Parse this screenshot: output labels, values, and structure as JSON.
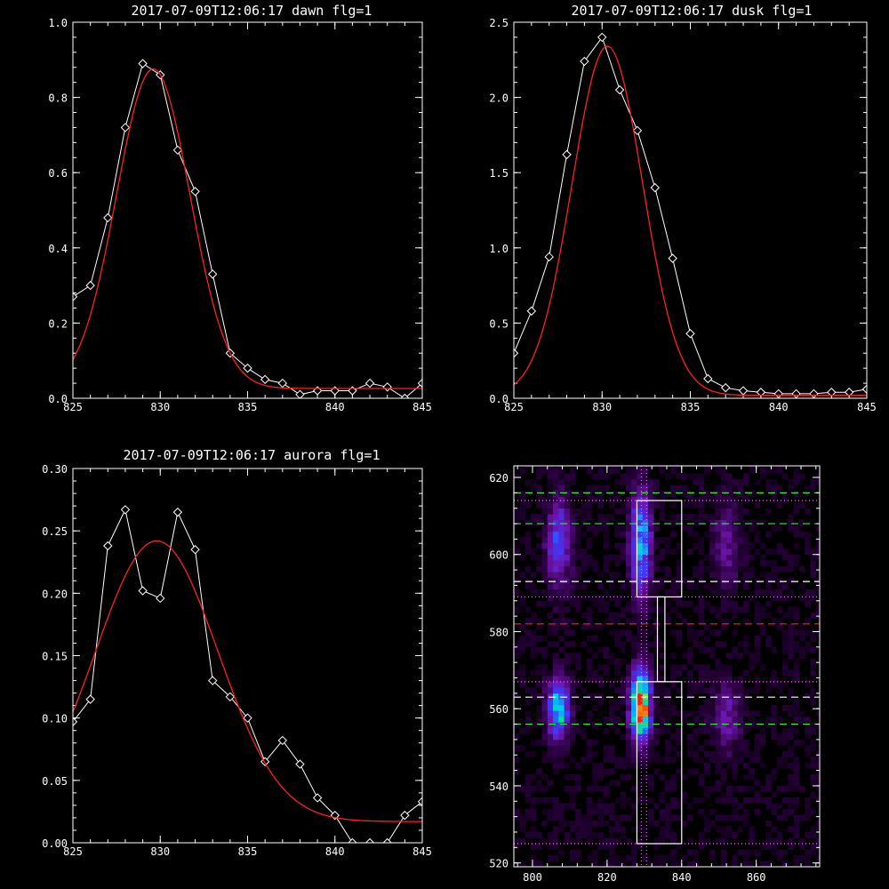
{
  "chart_data": [
    {
      "type": "line",
      "title": "2017-07-09T12:06:17 dawn flg=1",
      "xlim": [
        825,
        845
      ],
      "ylim": [
        0.0,
        1.0
      ],
      "x_ticks": [
        825,
        830,
        835,
        840,
        845
      ],
      "y_ticks": [
        0.0,
        0.2,
        0.4,
        0.6,
        0.8,
        1.0
      ],
      "x_tick_labels": [
        "825",
        "830",
        "835",
        "840",
        "845"
      ],
      "y_tick_labels": [
        "0.0",
        "0.2",
        "0.4",
        "0.6",
        "0.8",
        "1.0"
      ],
      "series": [
        {
          "color": "#ffffff",
          "marker": "diamond",
          "x": [
            825,
            826,
            827,
            828,
            829,
            830,
            831,
            832,
            833,
            834,
            835,
            836,
            837,
            838,
            839,
            840,
            841,
            842,
            843,
            844,
            845
          ],
          "y": [
            0.27,
            0.3,
            0.48,
            0.72,
            0.89,
            0.86,
            0.66,
            0.55,
            0.33,
            0.12,
            0.08,
            0.05,
            0.04,
            0.01,
            0.02,
            0.02,
            0.02,
            0.04,
            0.03,
            0.0,
            0.04
          ]
        },
        {
          "color": "#ff2020",
          "type": "gaussian",
          "amplitude": 0.85,
          "center": 829.6,
          "sigma": 2.1,
          "offset": 0.026
        }
      ]
    },
    {
      "type": "line",
      "title": "2017-07-09T12:06:17 dusk flg=1",
      "xlim": [
        825,
        845
      ],
      "ylim": [
        0.0,
        2.5
      ],
      "x_ticks": [
        825,
        830,
        835,
        840,
        845
      ],
      "y_ticks": [
        0.0,
        0.5,
        1.0,
        1.5,
        2.0,
        2.5
      ],
      "x_tick_labels": [
        "825",
        "830",
        "835",
        "840",
        "845"
      ],
      "y_tick_labels": [
        "0.0",
        "0.5",
        "1.0",
        "1.5",
        "2.0",
        "2.5"
      ],
      "series": [
        {
          "color": "#ffffff",
          "marker": "diamond",
          "x": [
            825,
            826,
            827,
            828,
            829,
            830,
            831,
            832,
            833,
            834,
            835,
            836,
            837,
            838,
            839,
            840,
            841,
            842,
            843,
            844,
            845
          ],
          "y": [
            0.3,
            0.58,
            0.94,
            1.62,
            2.24,
            2.4,
            2.05,
            1.78,
            1.4,
            0.93,
            0.43,
            0.13,
            0.07,
            0.05,
            0.04,
            0.03,
            0.03,
            0.03,
            0.04,
            0.04,
            0.06
          ]
        },
        {
          "color": "#ff2020",
          "type": "gaussian",
          "amplitude": 2.32,
          "center": 830.3,
          "sigma": 2.0,
          "offset": 0.02
        }
      ]
    },
    {
      "type": "line",
      "title": "2017-07-09T12:06:17 aurora flg=1",
      "xlim": [
        825,
        845
      ],
      "ylim": [
        0.0,
        0.3
      ],
      "x_ticks": [
        825,
        830,
        835,
        840,
        845
      ],
      "y_ticks": [
        0.0,
        0.05,
        0.1,
        0.15,
        0.2,
        0.25,
        0.3
      ],
      "x_tick_labels": [
        "825",
        "830",
        "835",
        "840",
        "845"
      ],
      "y_tick_labels": [
        "0.00",
        "0.05",
        "0.10",
        "0.15",
        "0.20",
        "0.25",
        "0.30"
      ],
      "series": [
        {
          "color": "#ffffff",
          "marker": "diamond",
          "x": [
            825,
            826,
            827,
            828,
            829,
            830,
            831,
            832,
            833,
            834,
            835,
            836,
            837,
            838,
            839,
            840,
            841,
            842,
            843,
            844,
            845
          ],
          "y": [
            0.097,
            0.115,
            0.238,
            0.267,
            0.202,
            0.196,
            0.265,
            0.235,
            0.13,
            0.117,
            0.1,
            0.065,
            0.082,
            0.063,
            0.036,
            0.022,
            0.0,
            0.0,
            0.0,
            0.022,
            0.033
          ]
        },
        {
          "color": "#ff2020",
          "type": "gaussian",
          "amplitude": 0.225,
          "center": 829.8,
          "sigma": 3.5,
          "offset": 0.017
        }
      ]
    },
    {
      "type": "heatmap",
      "xlim": [
        795,
        877
      ],
      "ylim": [
        519,
        623
      ],
      "x_ticks": [
        800,
        820,
        840,
        860
      ],
      "y_ticks": [
        520,
        540,
        560,
        580,
        600,
        620
      ],
      "x_tick_labels": [
        "800",
        "820",
        "840",
        "860"
      ],
      "y_tick_labels": [
        "520",
        "540",
        "560",
        "580",
        "600",
        "620"
      ],
      "blobs": [
        {
          "x": 807,
          "y": 560,
          "sx": 2.0,
          "sy": 5.0,
          "amp": 0.62
        },
        {
          "x": 829,
          "y": 561,
          "sx": 1.8,
          "sy": 6.0,
          "amp": 1.0
        },
        {
          "x": 829,
          "y": 603,
          "sx": 1.8,
          "sy": 9.0,
          "amp": 0.55
        },
        {
          "x": 807,
          "y": 603,
          "sx": 2.2,
          "sy": 8.0,
          "amp": 0.35
        },
        {
          "x": 852,
          "y": 558,
          "sx": 2.5,
          "sy": 6.0,
          "amp": 0.22
        },
        {
          "x": 852,
          "y": 603,
          "sx": 2.5,
          "sy": 8.0,
          "amp": 0.18
        }
      ],
      "horizontal_lines": [
        {
          "y": 616,
          "color": "#33ee33",
          "style": "dashed"
        },
        {
          "y": 608,
          "color": "#33ee33",
          "style": "dashed"
        },
        {
          "y": 556,
          "color": "#33ee33",
          "style": "dashed"
        },
        {
          "y": 593,
          "color": "#ffffff",
          "style": "dashed"
        },
        {
          "y": 563,
          "color": "#ffffff",
          "style": "dashed"
        },
        {
          "y": 582,
          "color": "#ff2020",
          "style": "dashed"
        },
        {
          "y": 614,
          "color": "#ff66ff",
          "style": "dotted"
        },
        {
          "y": 589,
          "color": "#ff66ff",
          "style": "dotted"
        },
        {
          "y": 567,
          "color": "#ff66ff",
          "style": "dotted"
        },
        {
          "y": 525,
          "color": "#ff66ff",
          "style": "dotted"
        }
      ],
      "vertical_lines": [
        {
          "x": 829.2,
          "color": "#ff66ff",
          "style": "dotted"
        },
        {
          "x": 830.6,
          "color": "#ff66ff",
          "style": "dotted"
        }
      ],
      "boxes": [
        {
          "x0": 828,
          "x1": 840,
          "y0": 589,
          "y1": 614,
          "color": "#ffffff"
        },
        {
          "x0": 828,
          "x1": 840,
          "y0": 525,
          "y1": 567,
          "color": "#ffffff"
        },
        {
          "x0": 833.5,
          "x1": 835.5,
          "y0": 567,
          "y1": 589,
          "color": "#ffffff"
        }
      ]
    }
  ]
}
